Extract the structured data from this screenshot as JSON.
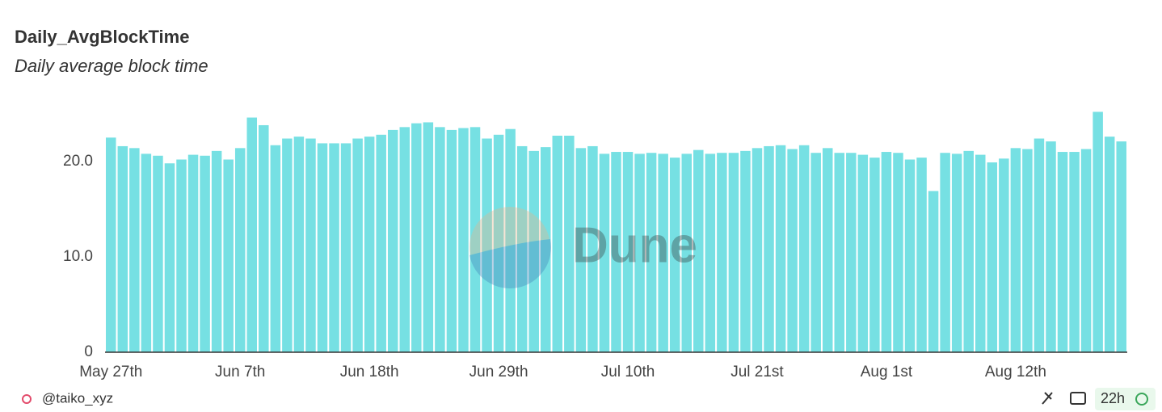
{
  "chart_data": {
    "type": "bar",
    "title": "Daily_AvgBlockTime",
    "subtitle": "Daily average block time",
    "categories": [
      "May 27th",
      null,
      null,
      null,
      null,
      null,
      null,
      null,
      null,
      null,
      null,
      "Jun 7th",
      null,
      null,
      null,
      null,
      null,
      null,
      null,
      null,
      null,
      null,
      "Jun 18th",
      null,
      null,
      null,
      null,
      null,
      null,
      null,
      null,
      null,
      null,
      "Jun 29th",
      null,
      null,
      null,
      null,
      null,
      null,
      null,
      null,
      null,
      null,
      "Jul 10th",
      null,
      null,
      null,
      null,
      null,
      null,
      null,
      null,
      null,
      null,
      "Jul 21st",
      null,
      null,
      null,
      null,
      null,
      null,
      null,
      null,
      null,
      null,
      "Aug 1st",
      null,
      null,
      null,
      null,
      null,
      null,
      null,
      null,
      null,
      null,
      "Aug 12th",
      null,
      null,
      null,
      null,
      null,
      null,
      null,
      null,
      null
    ],
    "values": [
      22.5,
      21.6,
      21.4,
      20.8,
      20.6,
      19.8,
      20.2,
      20.7,
      20.6,
      21.1,
      20.2,
      21.4,
      24.6,
      23.8,
      21.7,
      22.4,
      22.6,
      22.4,
      21.9,
      21.9,
      21.9,
      22.4,
      22.6,
      22.8,
      23.3,
      23.6,
      24.0,
      24.1,
      23.6,
      23.3,
      23.5,
      23.6,
      22.4,
      22.8,
      23.4,
      21.6,
      21.1,
      21.5,
      22.7,
      22.7,
      21.4,
      21.6,
      20.8,
      21.0,
      21.0,
      20.8,
      20.9,
      20.8,
      20.4,
      20.8,
      21.2,
      20.8,
      20.9,
      20.9,
      21.1,
      21.4,
      21.6,
      21.7,
      21.3,
      21.7,
      20.9,
      21.4,
      20.9,
      20.9,
      20.7,
      20.4,
      21.0,
      20.9,
      20.2,
      20.4,
      16.9,
      20.9,
      20.8,
      21.1,
      20.7,
      19.9,
      20.3,
      21.4,
      21.3,
      22.4,
      22.1,
      21.0,
      21.0,
      21.3,
      25.2,
      22.6,
      22.1
    ],
    "color": "#76e0e3",
    "ylim": [
      0,
      26
    ],
    "yticks": [
      0,
      {
        "value": 10,
        "label": "10.0"
      },
      {
        "value": 20,
        "label": "20.0"
      }
    ],
    "grid": false
  },
  "watermark": "Dune",
  "footer": {
    "user": "@taiko_xyz",
    "age": "22h"
  }
}
